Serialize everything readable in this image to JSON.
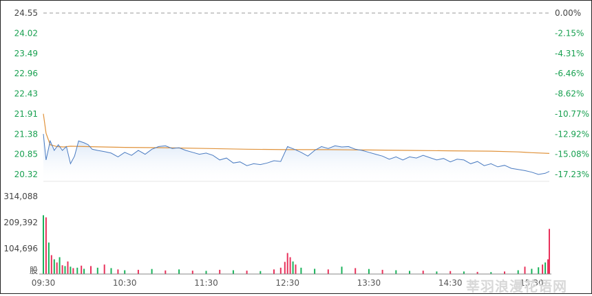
{
  "watermark": "莘羽浪漫花语网",
  "colors": {
    "price_line": "#4a7bc1",
    "avg_line": "#e0923a",
    "area_fill_top": "#cfe0f5",
    "up": "#e8305a",
    "down": "#18b25a",
    "axis_text": "#18a050",
    "grid": "#999999"
  },
  "chart_data": {
    "type": "line",
    "subtype": "intraday-time-sharing",
    "x_ticks": [
      "09:30",
      "10:30",
      "11:30",
      "12:30",
      "13:30",
      "14:30",
      "15:30"
    ],
    "price_axis": {
      "labels": [
        "24.55",
        "24.02",
        "23.49",
        "22.96",
        "22.43",
        "21.91",
        "21.38",
        "20.85",
        "20.32"
      ],
      "ylim": [
        20.32,
        24.55
      ]
    },
    "pct_axis": {
      "labels": [
        "0.00%",
        "-2.15%",
        "-4.31%",
        "-6.46%",
        "-8.62%",
        "-10.77%",
        "-12.92%",
        "-15.08%",
        "-17.23%"
      ]
    },
    "volume_axis": {
      "labels": [
        "314,088",
        "209,392",
        "104,696",
        "股"
      ],
      "ylim": [
        0,
        314088
      ]
    },
    "price_times": [
      "09:30",
      "09:32",
      "09:35",
      "09:38",
      "09:41",
      "09:44",
      "09:47",
      "09:50",
      "09:53",
      "09:56",
      "10:00",
      "10:03",
      "10:06",
      "10:10",
      "10:15",
      "10:20",
      "10:25",
      "10:30",
      "10:35",
      "10:40",
      "10:45",
      "10:50",
      "10:55",
      "11:00",
      "11:05",
      "11:10",
      "11:15",
      "11:20",
      "11:25",
      "11:30",
      "11:35",
      "11:40",
      "11:45",
      "11:50",
      "11:55",
      "12:00",
      "12:05",
      "12:10",
      "12:15",
      "12:20",
      "12:25",
      "12:30",
      "12:35",
      "12:40",
      "12:45",
      "12:50",
      "12:55",
      "13:00",
      "13:05",
      "13:10",
      "13:15",
      "13:20",
      "13:25",
      "13:30",
      "13:35",
      "13:40",
      "13:45",
      "13:50",
      "13:55",
      "14:00",
      "14:05",
      "14:10",
      "14:15",
      "14:20",
      "14:25",
      "14:30",
      "14:35",
      "14:40",
      "14:45",
      "14:50",
      "14:55",
      "15:00",
      "15:05",
      "15:10",
      "15:15",
      "15:20",
      "15:25",
      "15:30",
      "15:35",
      "15:40",
      "15:43"
    ],
    "price_values": [
      21.38,
      20.7,
      21.2,
      20.95,
      21.1,
      20.95,
      21.05,
      20.6,
      20.8,
      21.2,
      21.15,
      21.1,
      20.98,
      20.95,
      20.92,
      20.88,
      20.78,
      20.9,
      20.82,
      20.95,
      20.85,
      20.98,
      21.05,
      21.07,
      21.0,
      21.02,
      20.95,
      20.9,
      20.85,
      20.88,
      20.82,
      20.7,
      20.75,
      20.62,
      20.65,
      20.55,
      20.6,
      20.58,
      20.62,
      20.68,
      20.66,
      21.05,
      20.98,
      20.9,
      20.8,
      20.95,
      21.05,
      21.0,
      21.07,
      21.04,
      21.05,
      20.98,
      20.95,
      20.9,
      20.85,
      20.8,
      20.72,
      20.78,
      20.7,
      20.78,
      20.75,
      20.82,
      20.76,
      20.7,
      20.74,
      20.65,
      20.72,
      20.7,
      20.6,
      20.66,
      20.55,
      20.6,
      20.52,
      20.56,
      20.48,
      20.45,
      20.42,
      20.38,
      20.32,
      20.35,
      20.4
    ],
    "avg_times": [
      "09:30",
      "09:32",
      "09:35",
      "09:40",
      "09:45",
      "09:50",
      "10:00",
      "10:30",
      "11:00",
      "11:30",
      "12:00",
      "12:30",
      "13:00",
      "13:30",
      "14:00",
      "14:30",
      "15:00",
      "15:20",
      "15:30",
      "15:43"
    ],
    "avg_values": [
      21.91,
      21.4,
      21.1,
      21.05,
      21.04,
      21.06,
      21.05,
      21.03,
      21.02,
      21.0,
      20.98,
      20.97,
      20.97,
      20.96,
      20.95,
      20.94,
      20.93,
      20.91,
      20.89,
      20.87
    ],
    "volume_times": [
      "09:30",
      "09:32",
      "09:34",
      "09:36",
      "09:38",
      "09:40",
      "09:42",
      "09:44",
      "09:46",
      "09:48",
      "09:50",
      "09:52",
      "09:55",
      "09:58",
      "10:00",
      "10:05",
      "10:10",
      "10:15",
      "10:20",
      "10:25",
      "10:30",
      "10:40",
      "10:50",
      "11:00",
      "11:10",
      "11:20",
      "11:30",
      "11:40",
      "11:50",
      "12:00",
      "12:10",
      "12:20",
      "12:25",
      "12:28",
      "12:30",
      "12:32",
      "12:34",
      "12:36",
      "12:40",
      "12:50",
      "13:00",
      "13:10",
      "13:20",
      "13:30",
      "13:40",
      "13:50",
      "14:00",
      "14:10",
      "14:20",
      "14:30",
      "14:40",
      "14:50",
      "15:00",
      "15:10",
      "15:20",
      "15:25",
      "15:30",
      "15:35",
      "15:38",
      "15:40",
      "15:42",
      "15:43"
    ],
    "volume_values": [
      280000,
      270000,
      150000,
      90000,
      70000,
      55000,
      80000,
      42000,
      38000,
      60000,
      35000,
      28000,
      30000,
      40000,
      25000,
      38000,
      30000,
      45000,
      28000,
      22000,
      18000,
      20000,
      24000,
      17000,
      22000,
      16000,
      15000,
      20000,
      18000,
      16000,
      14000,
      22000,
      30000,
      58000,
      100000,
      80000,
      60000,
      45000,
      30000,
      25000,
      22000,
      35000,
      28000,
      24000,
      20000,
      18000,
      15000,
      16000,
      12000,
      14000,
      12000,
      10000,
      9000,
      12000,
      18000,
      35000,
      25000,
      32000,
      45000,
      55000,
      70000,
      215000
    ],
    "volume_colors": [
      "down",
      "up",
      "down",
      "up",
      "down",
      "up",
      "down",
      "up",
      "down",
      "up",
      "down",
      "up",
      "down",
      "up",
      "down",
      "up",
      "down",
      "up",
      "down",
      "up",
      "down",
      "up",
      "down",
      "up",
      "down",
      "up",
      "down",
      "up",
      "down",
      "up",
      "down",
      "up",
      "up",
      "up",
      "up",
      "up",
      "down",
      "up",
      "down",
      "down",
      "up",
      "down",
      "up",
      "down",
      "up",
      "down",
      "down",
      "up",
      "down",
      "up",
      "down",
      "up",
      "down",
      "up",
      "down",
      "up",
      "down",
      "down",
      "up",
      "down",
      "up",
      "up"
    ]
  }
}
